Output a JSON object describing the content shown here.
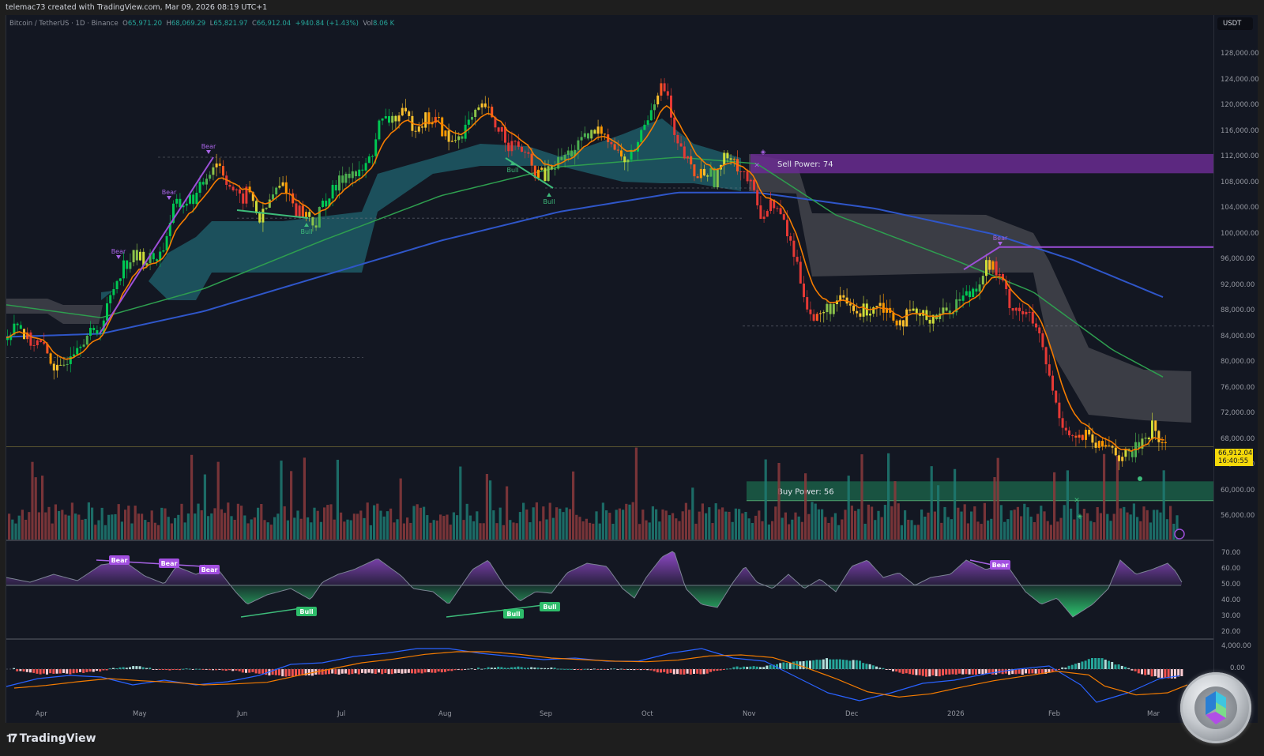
{
  "header": {
    "credit": "telemac73 created with TradingView.com, Mar 09, 2026 08:19 UTC+1"
  },
  "legend": {
    "symbol": "Bitcoin / TetherUS · 1D · Binance",
    "o_label": "O",
    "open": "65,971.20",
    "h_label": "H",
    "high": "68,069.29",
    "l_label": "L",
    "low": "65,821.97",
    "c_label": "C",
    "close": "66,912.04",
    "change": "+940.84 (+1.43%)",
    "vol_label": "Vol",
    "volume": "8.06 K"
  },
  "currency": "USDT",
  "price_tag": {
    "price": "66,912.04",
    "countdown": "16:40:55",
    "color": "#f5d90a"
  },
  "y_axis_price": [
    "128,000.00",
    "124,000.00",
    "120,000.00",
    "116,000.00",
    "112,000.00",
    "108,000.00",
    "104,000.00",
    "100,000.00",
    "96,000.00",
    "92,000.00",
    "88,000.00",
    "84,000.00",
    "80,000.00",
    "76,000.00",
    "72,000.00",
    "68,000.00",
    "64,000.00",
    "60,000.00",
    "56,000.00"
  ],
  "y_axis_rsi": [
    "70.00",
    "60.00",
    "50.00",
    "40.00",
    "30.00",
    "20.00"
  ],
  "y_axis_macd": [
    "4,000.00",
    "0.00"
  ],
  "x_axis": [
    "Apr",
    "May",
    "Jun",
    "Jul",
    "Aug",
    "Sep",
    "Oct",
    "Nov",
    "Dec",
    "2026",
    "Feb",
    "Mar"
  ],
  "zones": {
    "sell": {
      "label": "Sell Power: 74",
      "color": "#6a2c91"
    },
    "buy": {
      "label": "Buy Power: 56",
      "color": "#1b5e46"
    }
  },
  "annotations": {
    "bear": "Bear",
    "bull": "Bull"
  },
  "brand": {
    "name": "TradingView",
    "mark": "17"
  },
  "colors": {
    "background": "#131722",
    "up": "#26a69a",
    "down": "#ef5350",
    "ema_fast": "#f57c00",
    "sma_green": "#2e9e4f",
    "sma_blue": "#2f56c9",
    "cloud_teal": "#1f5a66",
    "cloud_gray": "#4a4b52",
    "divergence": "#9c4fd8"
  },
  "chart_data": {
    "type": "candlestick",
    "title": "Bitcoin / TetherUS · 1D · Binance",
    "ylabel": "USDT",
    "ylim": [
      54000,
      130000
    ],
    "x": [
      "Apr",
      "May",
      "Jun",
      "Jul",
      "Aug",
      "Sep",
      "Oct",
      "Nov",
      "Dec",
      "2026",
      "Feb",
      "Mar"
    ],
    "price_path": [
      [
        0,
        84000
      ],
      [
        10,
        87000
      ],
      [
        25,
        83500
      ],
      [
        40,
        83000
      ],
      [
        55,
        80500
      ],
      [
        65,
        78000
      ],
      [
        80,
        82000
      ],
      [
        95,
        84000
      ],
      [
        110,
        84500
      ],
      [
        120,
        86000
      ],
      [
        135,
        92000
      ],
      [
        145,
        95000
      ],
      [
        160,
        96500
      ],
      [
        180,
        96000
      ],
      [
        195,
        97000
      ],
      [
        210,
        104000
      ],
      [
        225,
        105000
      ],
      [
        240,
        106000
      ],
      [
        255,
        110000
      ],
      [
        265,
        111500
      ],
      [
        280,
        108000
      ],
      [
        295,
        105000
      ],
      [
        305,
        107000
      ],
      [
        320,
        102000
      ],
      [
        335,
        106000
      ],
      [
        350,
        108000
      ],
      [
        365,
        104000
      ],
      [
        380,
        103000
      ],
      [
        390,
        101500
      ],
      [
        400,
        105000
      ],
      [
        415,
        107000
      ],
      [
        430,
        110000
      ],
      [
        445,
        109000
      ],
      [
        460,
        112000
      ],
      [
        470,
        117000
      ],
      [
        485,
        118000
      ],
      [
        500,
        118500
      ],
      [
        515,
        117000
      ],
      [
        530,
        118000
      ],
      [
        545,
        117500
      ],
      [
        560,
        114000
      ],
      [
        575,
        116000
      ],
      [
        590,
        118000
      ],
      [
        605,
        120000
      ],
      [
        615,
        117000
      ],
      [
        625,
        116500
      ],
      [
        635,
        114000
      ],
      [
        650,
        113500
      ],
      [
        665,
        110000
      ],
      [
        680,
        109000
      ],
      [
        695,
        111000
      ],
      [
        710,
        112500
      ],
      [
        725,
        114000
      ],
      [
        740,
        115500
      ],
      [
        755,
        116500
      ],
      [
        770,
        113000
      ],
      [
        785,
        111000
      ],
      [
        800,
        115000
      ],
      [
        815,
        120000
      ],
      [
        825,
        123000
      ],
      [
        835,
        122000
      ],
      [
        845,
        114000
      ],
      [
        855,
        112500
      ],
      [
        870,
        109000
      ],
      [
        885,
        110000
      ],
      [
        895,
        108500
      ],
      [
        905,
        111000
      ],
      [
        915,
        113000
      ],
      [
        925,
        110500
      ],
      [
        935,
        109000
      ],
      [
        945,
        106000
      ],
      [
        955,
        103000
      ],
      [
        970,
        105000
      ],
      [
        985,
        101000
      ],
      [
        1000,
        95000
      ],
      [
        1010,
        90000
      ],
      [
        1020,
        86500
      ],
      [
        1030,
        87500
      ],
      [
        1045,
        89000
      ],
      [
        1060,
        89500
      ],
      [
        1075,
        87500
      ],
      [
        1090,
        88500
      ],
      [
        1105,
        89500
      ],
      [
        1115,
        88000
      ],
      [
        1130,
        86500
      ],
      [
        1145,
        87500
      ],
      [
        1160,
        87000
      ],
      [
        1175,
        87500
      ],
      [
        1190,
        88000
      ],
      [
        1205,
        90000
      ],
      [
        1220,
        91000
      ],
      [
        1230,
        93000
      ],
      [
        1240,
        95500
      ],
      [
        1250,
        94500
      ],
      [
        1260,
        92000
      ],
      [
        1270,
        89000
      ],
      [
        1285,
        88000
      ],
      [
        1300,
        86000
      ],
      [
        1310,
        82000
      ],
      [
        1320,
        77000
      ],
      [
        1330,
        72000
      ],
      [
        1340,
        70000
      ],
      [
        1350,
        68000
      ],
      [
        1365,
        68500
      ],
      [
        1380,
        66500
      ],
      [
        1395,
        67500
      ],
      [
        1410,
        65000
      ],
      [
        1425,
        66000
      ],
      [
        1440,
        68500
      ],
      [
        1450,
        70000
      ],
      [
        1460,
        67500
      ],
      [
        1468,
        66912
      ]
    ],
    "sma_blue_path": [
      [
        0,
        84000
      ],
      [
        120,
        84500
      ],
      [
        250,
        88000
      ],
      [
        400,
        93500
      ],
      [
        550,
        99000
      ],
      [
        700,
        103500
      ],
      [
        850,
        106500
      ],
      [
        950,
        106500
      ],
      [
        1100,
        104000
      ],
      [
        1250,
        100000
      ],
      [
        1350,
        96000
      ],
      [
        1468,
        90000
      ]
    ],
    "sma_green_path": [
      [
        0,
        89000
      ],
      [
        120,
        87000
      ],
      [
        250,
        91500
      ],
      [
        400,
        99000
      ],
      [
        550,
        106000
      ],
      [
        700,
        110500
      ],
      [
        850,
        112000
      ],
      [
        950,
        111000
      ],
      [
        1050,
        103000
      ],
      [
        1200,
        96000
      ],
      [
        1300,
        91000
      ],
      [
        1400,
        82000
      ],
      [
        1468,
        77500
      ]
    ],
    "levels": {
      "sell_zone": [
        109500,
        112500
      ],
      "buy_zone": [
        58500,
        61500
      ],
      "dashed_85700": 85700,
      "dashed_80800": 80800,
      "dashed_112000": 112000,
      "dashed_102500": 102500,
      "resistance_98000": 98000
    },
    "rsi": {
      "ylim": [
        20,
        72
      ],
      "midline": 50
    },
    "macd": {
      "ylim": [
        -9000,
        5000
      ],
      "zero": 0
    }
  }
}
